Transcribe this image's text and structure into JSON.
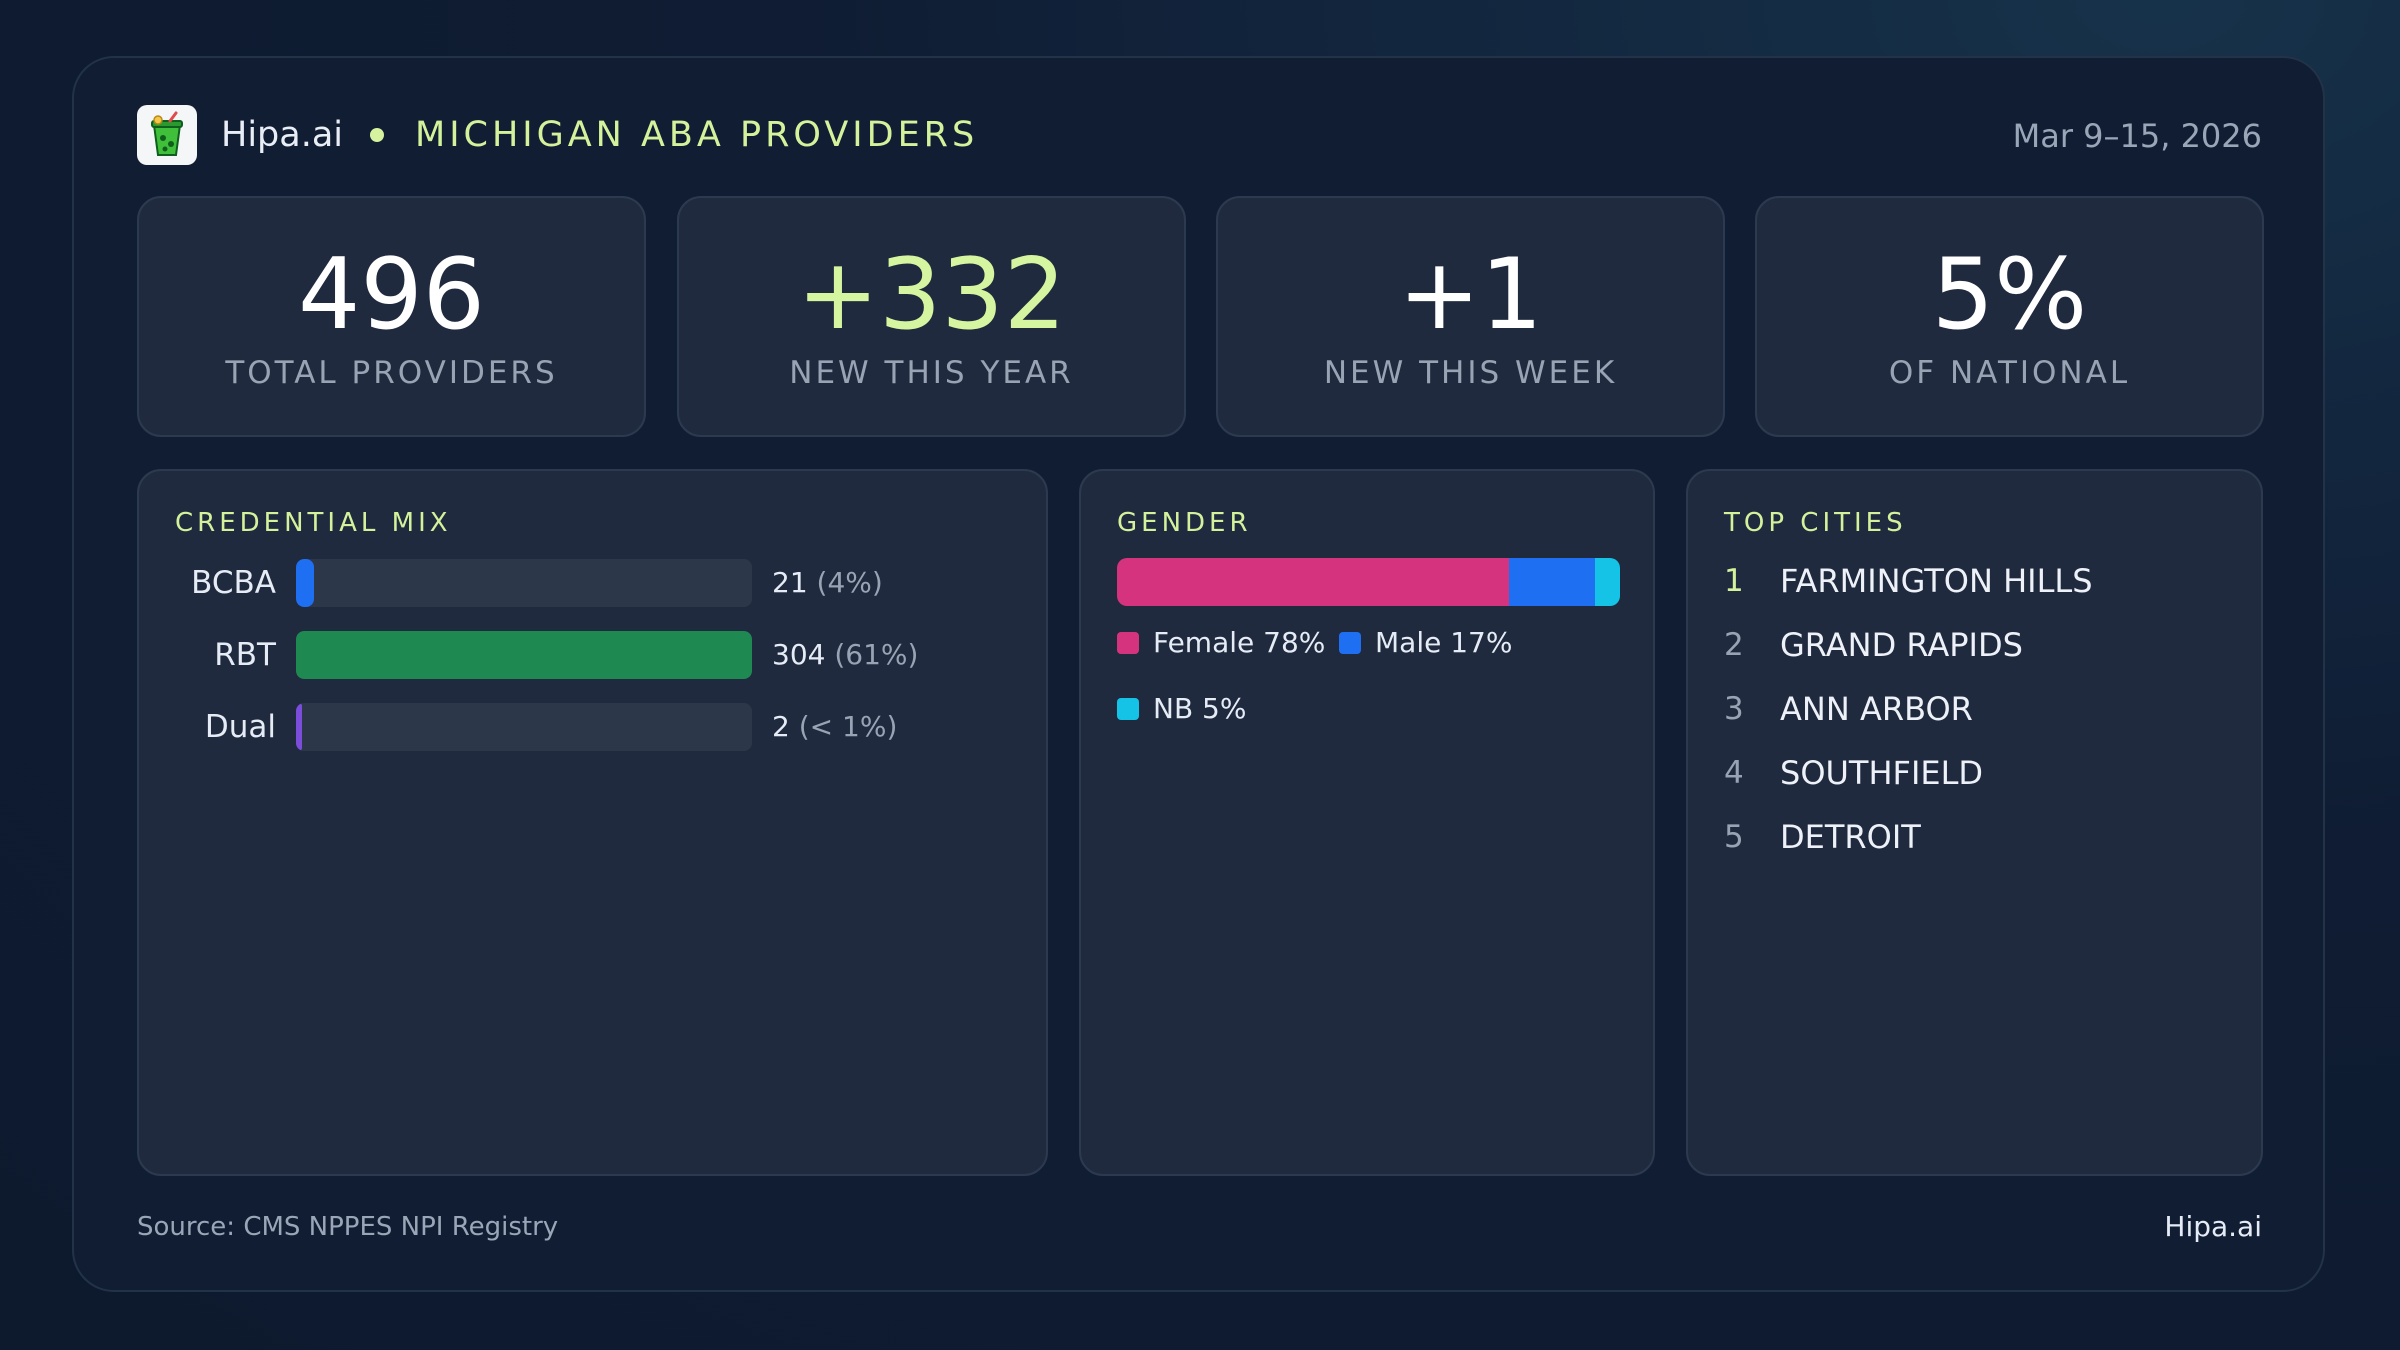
{
  "header": {
    "brand": "Hipa.ai",
    "title": "MICHIGAN ABA PROVIDERS",
    "date_range": "Mar 9–15, 2026",
    "logo_icon": "drink-cup-icon"
  },
  "kpis": [
    {
      "value": "496",
      "label": "TOTAL PROVIDERS"
    },
    {
      "value": "+332",
      "label": "NEW THIS YEAR"
    },
    {
      "value": "+1",
      "label": "NEW THIS WEEK"
    },
    {
      "value": "5%",
      "label": "OF NATIONAL"
    }
  ],
  "credential_mix": {
    "title": "CREDENTIAL MIX",
    "rows": [
      {
        "label": "BCBA",
        "count": "21",
        "pct": "(4%)",
        "fraction": 0.04,
        "color": "#1e6ff2"
      },
      {
        "label": "RBT",
        "count": "304",
        "pct": "(61%)",
        "fraction": 1.0,
        "color": "#1e8a52"
      },
      {
        "label": "Dual",
        "count": "2",
        "pct": "(< 1%)",
        "fraction": 0.008,
        "color": "#7c4ddb"
      }
    ]
  },
  "gender": {
    "title": "GENDER",
    "segments": [
      {
        "label": "Female 78%",
        "fraction": 0.78,
        "color": "#d6337f"
      },
      {
        "label": "Male 17%",
        "fraction": 0.17,
        "color": "#1e6ff2"
      },
      {
        "label": "NB 5%",
        "fraction": 0.05,
        "color": "#14c3e6"
      }
    ]
  },
  "top_cities": {
    "title": "TOP CITIES",
    "items": [
      {
        "rank": "1",
        "name": "FARMINGTON HILLS"
      },
      {
        "rank": "2",
        "name": "GRAND RAPIDS"
      },
      {
        "rank": "3",
        "name": "ANN ARBOR"
      },
      {
        "rank": "4",
        "name": "SOUTHFIELD"
      },
      {
        "rank": "5",
        "name": "DETROIT"
      }
    ]
  },
  "footer": {
    "source": "Source: CMS NPPES NPI Registry",
    "brand": "Hipa.ai"
  }
}
